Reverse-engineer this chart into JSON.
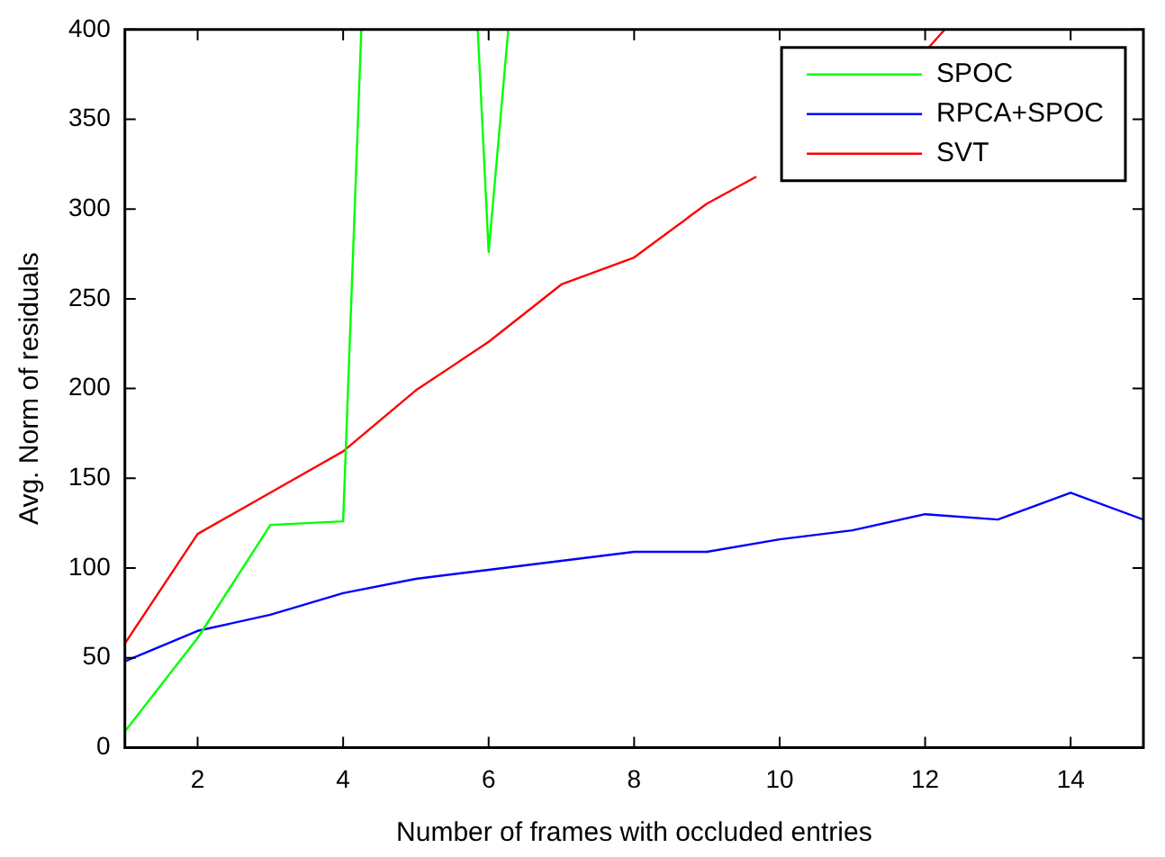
{
  "chart_data": {
    "type": "line",
    "xlabel": "Number of frames with occluded entries",
    "ylabel": "Avg. Norm of residuals",
    "xlim": [
      1,
      15
    ],
    "xticks": [
      2,
      4,
      6,
      8,
      10,
      12,
      14
    ],
    "ylim": [
      0,
      400
    ],
    "yticks": [
      0,
      50,
      100,
      150,
      200,
      250,
      300,
      350,
      400
    ],
    "grid": false,
    "legend": "top right",
    "marker": "none",
    "line_style": "solid",
    "series": [
      {
        "name": "SPOC",
        "color": "#00ff00",
        "x": [
          1,
          2,
          3,
          4,
          4.25,
          5,
          5.85,
          6,
          6.27
        ],
        "values": [
          9,
          61,
          124,
          126,
          400,
          null,
          400,
          276,
          400
        ]
      },
      {
        "name": "RPCA+SPOC",
        "color": "#0000ff",
        "x": [
          1,
          2,
          3,
          4,
          5,
          6,
          7,
          8,
          9,
          10,
          11,
          12,
          13,
          14,
          15
        ],
        "values": [
          48,
          65,
          74,
          86,
          94,
          99,
          104,
          109,
          109,
          116,
          121,
          130,
          127,
          142,
          127
        ]
      },
      {
        "name": "SVT",
        "color": "#ff0000",
        "x": [
          1,
          2,
          3,
          4,
          5,
          6,
          7,
          8,
          9,
          9.68,
          10,
          11,
          12,
          12.05,
          12.27
        ],
        "values": [
          58,
          119,
          142,
          165,
          199,
          226,
          258,
          273,
          303,
          318,
          null,
          null,
          null,
          390,
          400
        ]
      }
    ]
  }
}
